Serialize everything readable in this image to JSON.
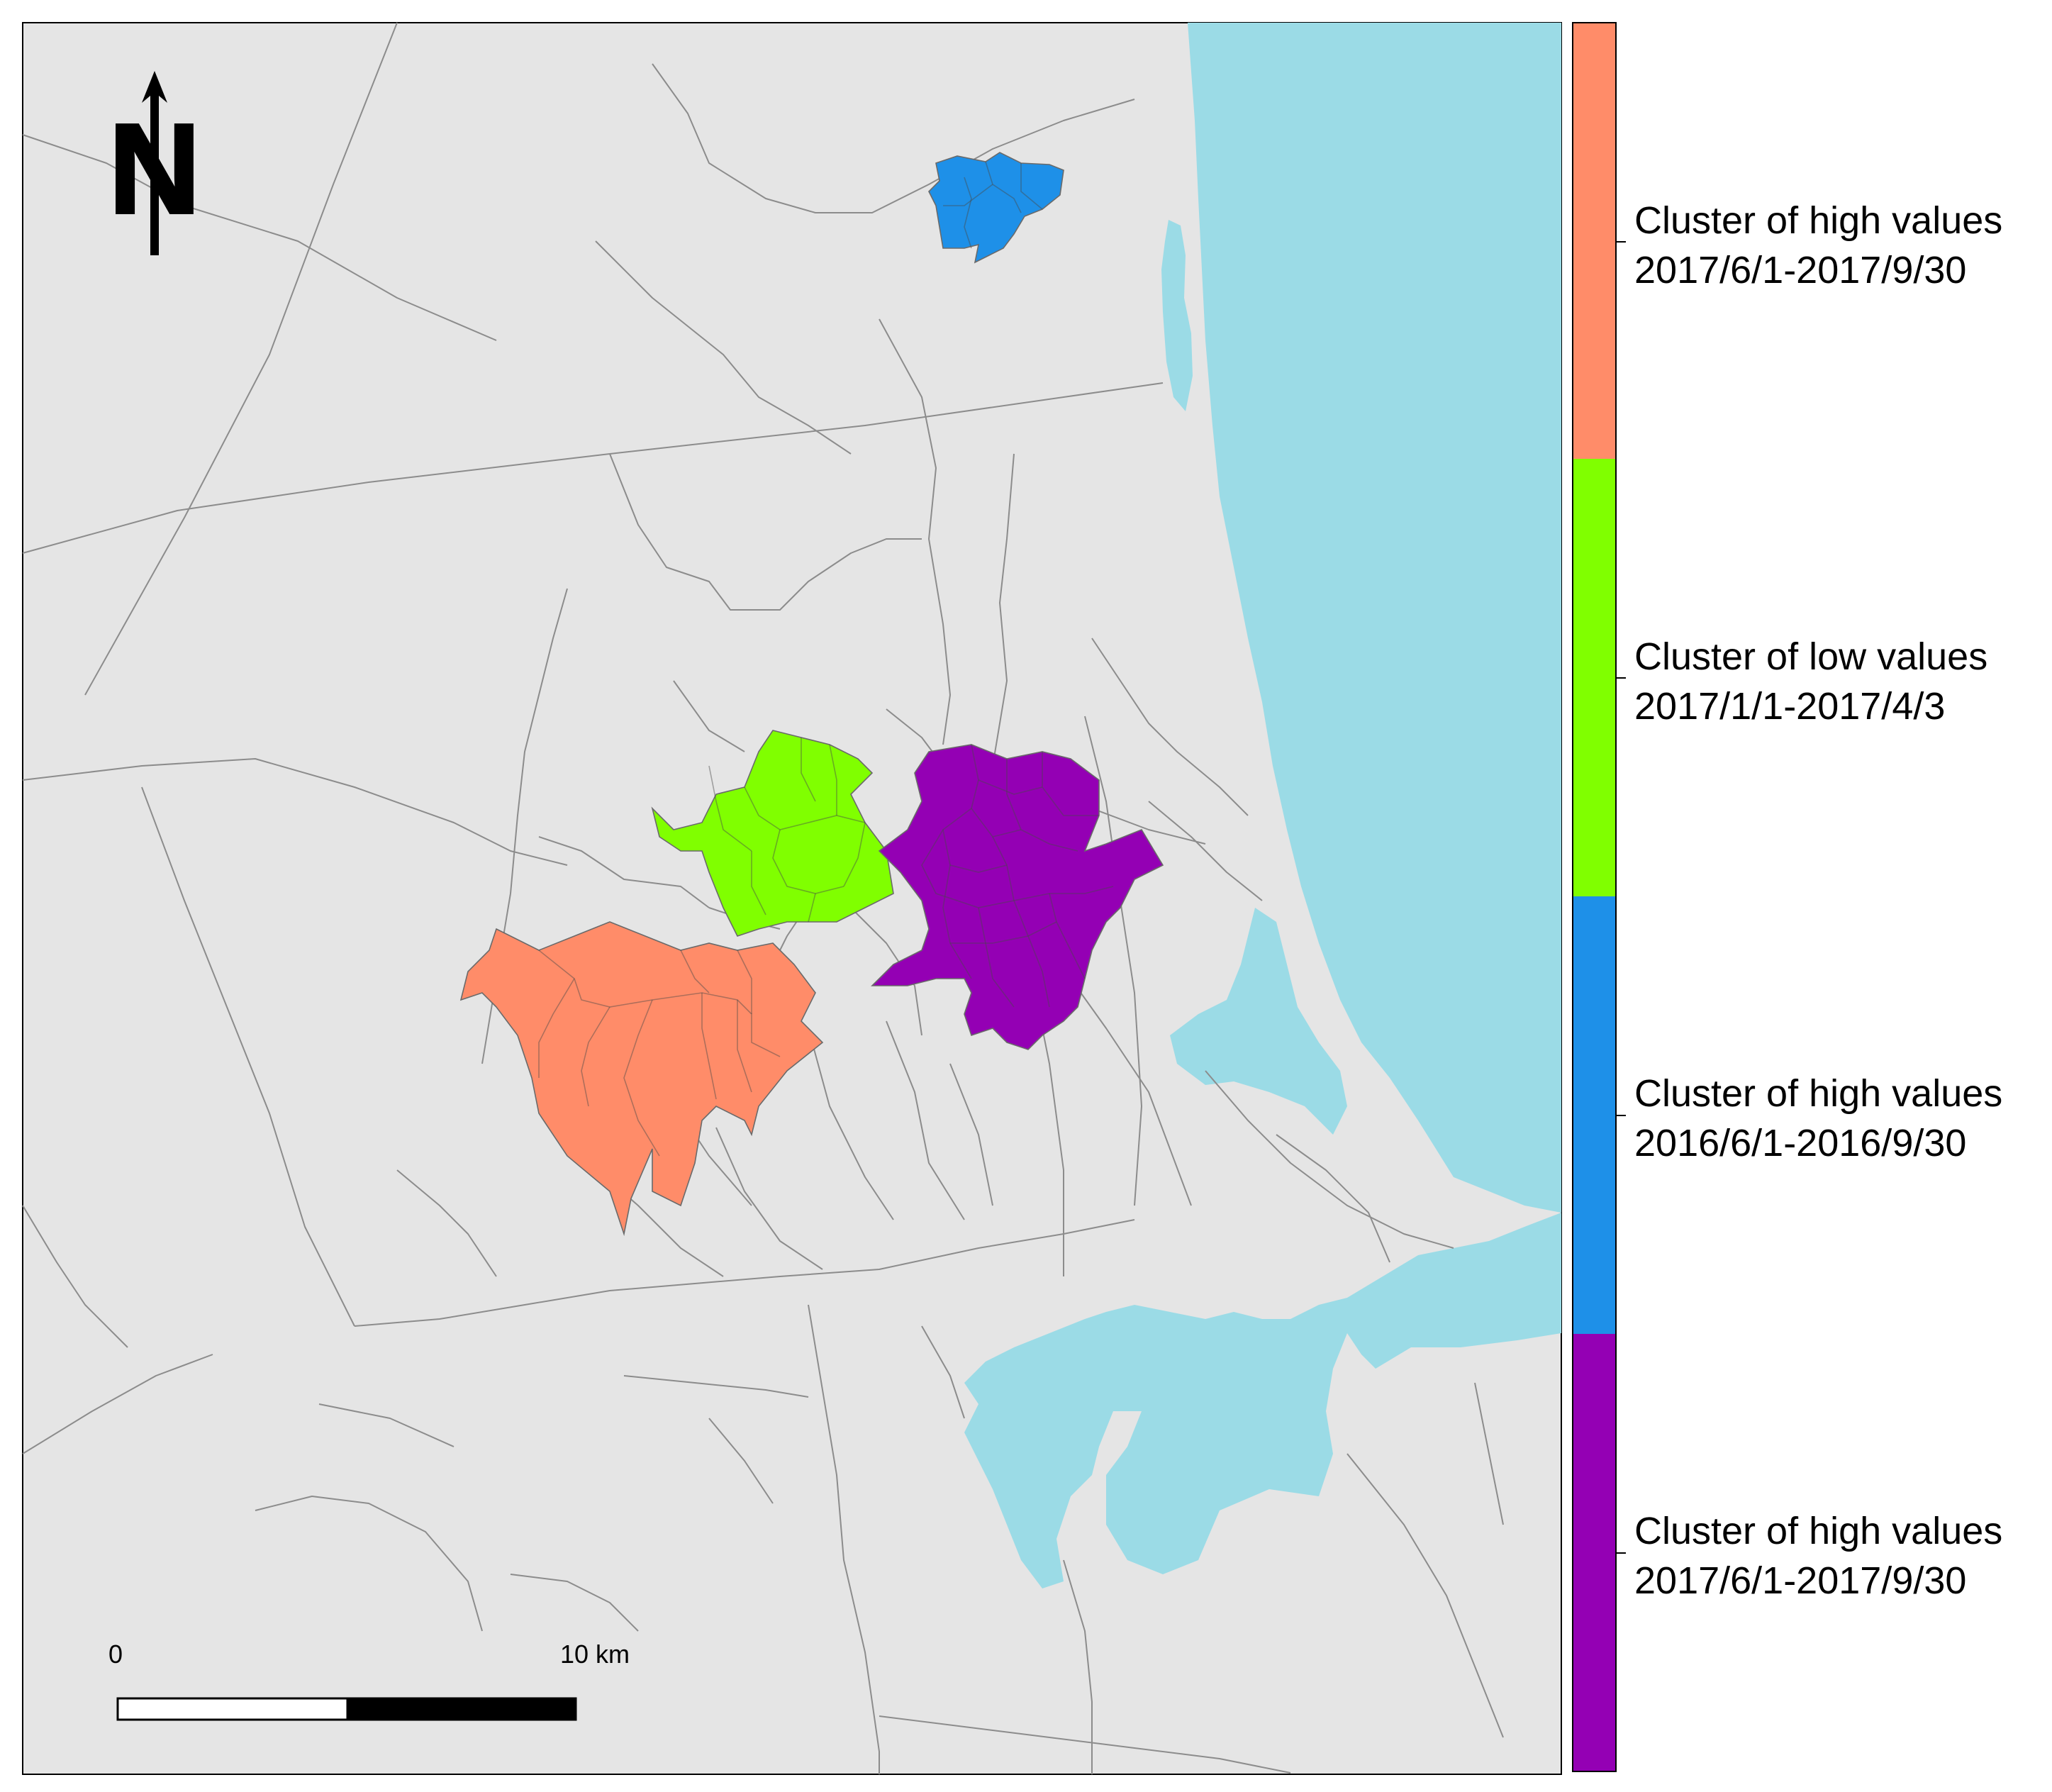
{
  "legend": {
    "items": [
      {
        "line1": "Cluster of high values",
        "line2": "2017/6/1-2017/9/30",
        "color": "#ff8c69"
      },
      {
        "line1": "Cluster of low values",
        "line2": "2017/1/1-2017/4/3",
        "color": "#80ff00"
      },
      {
        "line1": "Cluster of high values",
        "line2": "2016/6/1-2016/9/30",
        "color": "#1e90e8"
      },
      {
        "line1": "Cluster of high values",
        "line2": "2017/6/1-2017/9/30",
        "color": "#9400b4"
      }
    ]
  },
  "north_arrow": {
    "label": "N"
  },
  "scale_bar": {
    "start_label": "0",
    "end_label": "10 km"
  },
  "colors": {
    "land": "#e5e5e5",
    "water": "#9bdbe6",
    "border": "#8c8c8c"
  }
}
